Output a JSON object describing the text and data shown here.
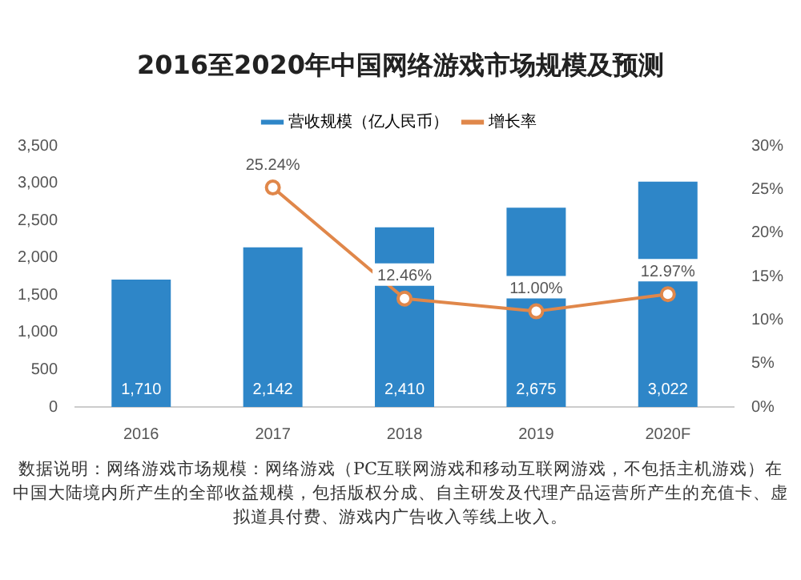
{
  "chart_data": {
    "type": "bar",
    "title": "2016至2020年中国网络游戏市场规模及预测",
    "categories": [
      "2016",
      "2017",
      "2018",
      "2019",
      "2020F"
    ],
    "series": [
      {
        "name": "营收规模（亿人民币）",
        "color": "#2e86c8",
        "values": [
          1710,
          2142,
          2410,
          2675,
          3022
        ],
        "value_labels": [
          "1,710",
          "2,142",
          "2,410",
          "2,675",
          "3,022"
        ]
      },
      {
        "name": "增长率",
        "type": "line",
        "axis": "y2",
        "color": "#e0874a",
        "values": [
          null,
          25.24,
          12.46,
          11.0,
          12.97
        ],
        "value_labels": [
          null,
          "25.24%",
          "12.46%",
          "11.00%",
          "12.97%"
        ]
      }
    ],
    "ylim": [
      0,
      3500
    ],
    "yticks": [
      0,
      500,
      {
        "value": 1000,
        "label": "1,000"
      },
      {
        "value": 1500,
        "label": "1,500"
      },
      {
        "value": 2000,
        "label": "2,000"
      },
      {
        "value": 2500,
        "label": "2,500"
      },
      {
        "value": 3000,
        "label": "3,000"
      },
      {
        "value": 3500,
        "label": "3,500"
      }
    ],
    "y2lim": [
      0,
      30
    ],
    "y2ticks": [
      {
        "value": 0,
        "label": "0%"
      },
      {
        "value": 5,
        "label": "5%"
      },
      {
        "value": 10,
        "label": "10%"
      },
      {
        "value": 15,
        "label": "15%"
      },
      {
        "value": 20,
        "label": "20%"
      },
      {
        "value": 25,
        "label": "25%"
      },
      {
        "value": 30,
        "label": "30%"
      }
    ],
    "grid": false,
    "legend": "top",
    "marker": "circle",
    "annotations": [
      "数据说明：网络游戏市场规模：网络游戏（PC互联网游戏和移动互联网游戏，不包括主机游戏）在中国大陆境内所产生的全部收益规模，包括版权分成、自主研发及代理产品运营所产生的充值卡、虚拟道具付费、游戏内广告收入等线上收入。"
    ]
  }
}
